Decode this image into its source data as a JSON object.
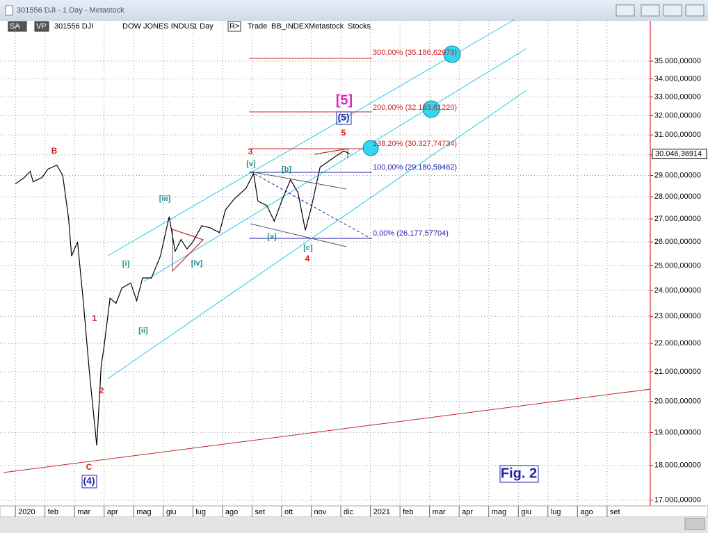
{
  "window": {
    "title": "301556 DJI - 1 Day - Metastock",
    "toolbar": [
      "SA",
      "VP",
      "301556 DJI",
      "DOW JONES INDUS",
      "1 Day",
      "R>",
      "Trade",
      "BB_INDEX",
      "Metastock",
      "Stocks"
    ]
  },
  "chart_data": {
    "type": "line",
    "scale": "log",
    "color": "#000000",
    "x": [
      0.0,
      0.3,
      0.5,
      0.6,
      0.9,
      1.1,
      1.4,
      1.6,
      1.8,
      1.9,
      2.1,
      2.3,
      2.5,
      2.6,
      2.75,
      2.9,
      3.0,
      3.2,
      3.4,
      3.6,
      3.9,
      4.1,
      4.3,
      4.6,
      4.9,
      5.2,
      5.4,
      5.6,
      5.8,
      6.0,
      6.3,
      6.6,
      6.9,
      7.1,
      7.4,
      7.8,
      8.05,
      8.2,
      8.5,
      8.75,
      9.0,
      9.3,
      9.55,
      9.8,
      10.0,
      10.3,
      10.5,
      10.8,
      11.1,
      11.3
    ],
    "values": [
      28600,
      28900,
      29200,
      28700,
      28900,
      29300,
      29500,
      29000,
      27000,
      25400,
      26000,
      23500,
      21000,
      20000,
      18600,
      21200,
      21900,
      23700,
      23500,
      24100,
      24300,
      23600,
      24500,
      24500,
      25400,
      27100,
      25600,
      26100,
      25700,
      26000,
      26700,
      26600,
      26400,
      27400,
      27900,
      28400,
      29100,
      27800,
      27600,
      26900,
      27800,
      28800,
      28200,
      26500,
      27500,
      29400,
      29600,
      29900,
      30200,
      30046
    ],
    "xlim": [
      -0.52,
      21.46
    ],
    "xticks": [
      {
        "value": 0,
        "label": "2020"
      },
      {
        "value": 1,
        "label": "feb"
      },
      {
        "value": 2,
        "label": "mar"
      },
      {
        "value": 3,
        "label": "apr"
      },
      {
        "value": 4,
        "label": "mag"
      },
      {
        "value": 5,
        "label": "giu"
      },
      {
        "value": 6,
        "label": "lug"
      },
      {
        "value": 7,
        "label": "ago"
      },
      {
        "value": 8,
        "label": "set"
      },
      {
        "value": 9,
        "label": "ott"
      },
      {
        "value": 10,
        "label": "nov"
      },
      {
        "value": 11,
        "label": "dic"
      },
      {
        "value": 12,
        "label": "2021"
      },
      {
        "value": 13,
        "label": "feb"
      },
      {
        "value": 14,
        "label": "mar"
      },
      {
        "value": 15,
        "label": "apr"
      },
      {
        "value": 16,
        "label": "mag"
      },
      {
        "value": 17,
        "label": "giu"
      },
      {
        "value": 18,
        "label": "lug"
      },
      {
        "value": 19,
        "label": "ago"
      },
      {
        "value": 20,
        "label": "set"
      }
    ],
    "ylim": [
      16840,
      37400
    ],
    "yticks": [
      {
        "value": 17000,
        "label": "17.000,00000"
      },
      {
        "value": 18000,
        "label": "18.000,00000"
      },
      {
        "value": 19000,
        "label": "19.000,00000"
      },
      {
        "value": 20000,
        "label": "20.000,00000"
      },
      {
        "value": 21000,
        "label": "21.000,00000"
      },
      {
        "value": 22000,
        "label": "22.000,00000"
      },
      {
        "value": 23000,
        "label": "23.000,00000"
      },
      {
        "value": 24000,
        "label": "24.000,00000"
      },
      {
        "value": 25000,
        "label": "25.000,00000"
      },
      {
        "value": 26000,
        "label": "26.000,00000"
      },
      {
        "value": 27000,
        "label": "27.000,00000"
      },
      {
        "value": 28000,
        "label": "28.000,00000"
      },
      {
        "value": 29000,
        "label": "29.000,00000"
      },
      {
        "value": 30000,
        "label": "30.000,00000"
      },
      {
        "value": 31000,
        "label": "31.000,00000"
      },
      {
        "value": 32000,
        "label": "32.000,00000"
      },
      {
        "value": 33000,
        "label": "33.000,00000"
      },
      {
        "value": 34000,
        "label": "34.000,00000"
      },
      {
        "value": 35000,
        "label": "35.000,00000"
      }
    ],
    "grid": true,
    "current_price": {
      "value": 30046.36914,
      "label": "30.046,36914"
    },
    "fib_labels": [
      "300,00% (35.186,62973)",
      "200,00% (32.183,61220)",
      "138,20% (30.327,74734)",
      "100,00% (29.180,59462)",
      "0,00% (26.177,57704)"
    ],
    "wave_labels": [
      "B",
      "C",
      "(4)",
      "1",
      "2",
      "[i]",
      "[ii]",
      "[iii]",
      "[iv]",
      "[v]",
      "3",
      "[a]",
      "[b]",
      "[c]",
      "4",
      "5",
      "(5)",
      "[5]"
    ],
    "figure_label": "Fig. 2"
  }
}
